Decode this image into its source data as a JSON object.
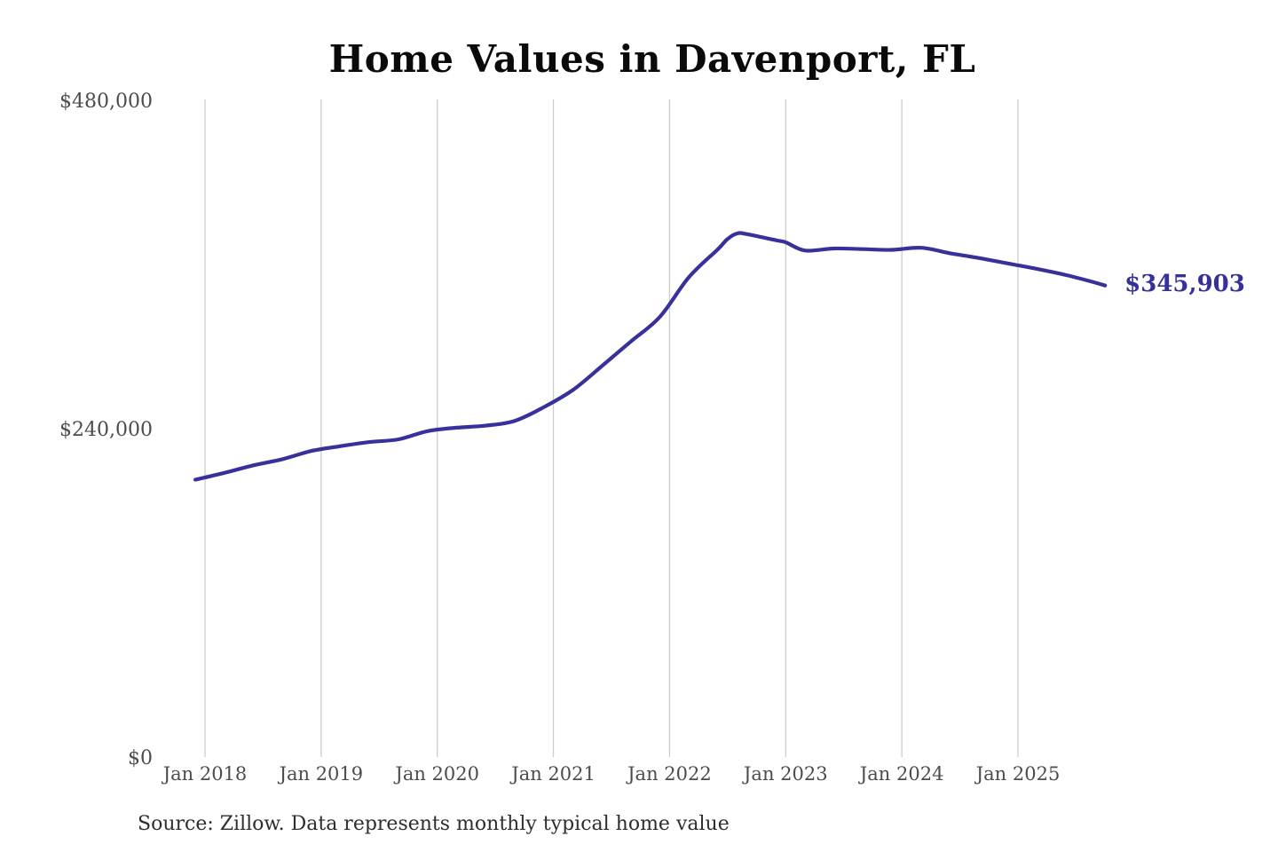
{
  "page": {
    "background": "#ffffff"
  },
  "chart": {
    "title": "Home Values in Davenport, FL",
    "annotation": {
      "label": "$345,903"
    },
    "colors": {
      "line": "#39319b",
      "annotation_text": "#36309a",
      "grid": "#cccccc",
      "axis_text": "#4c4c4c",
      "title_text": "#0a0a0a"
    }
  },
  "footer": {
    "source": "Source: Zillow. Data represents monthly typical home value"
  },
  "chart_data": {
    "type": "line",
    "title": "Home Values in Davenport, FL",
    "unit": "USD",
    "legend": "none",
    "grid": "vertical-only",
    "y_axis": {
      "range": [
        0,
        480000
      ],
      "ticks": [
        {
          "label": "$0",
          "value": 0
        },
        {
          "label": "$240,000",
          "value": 240000
        },
        {
          "label": "$480,000",
          "value": 480000
        }
      ]
    },
    "x_axis": {
      "tick_labels": [
        "Jan 2018",
        "Jan 2019",
        "Jan 2020",
        "Jan 2021",
        "Jan 2022",
        "Jan 2023",
        "Jan 2024",
        "Jan 2025"
      ]
    },
    "end_label": "$345,903",
    "series": [
      {
        "name": "Monthly typical home value",
        "points": [
          {
            "month": "Dec 2017",
            "value": 204000
          },
          {
            "month": "Mar 2018",
            "value": 209000
          },
          {
            "month": "Jun 2018",
            "value": 214500
          },
          {
            "month": "Sep 2018",
            "value": 219000
          },
          {
            "month": "Dec 2018",
            "value": 225000
          },
          {
            "month": "Mar 2019",
            "value": 228500
          },
          {
            "month": "Jun 2019",
            "value": 231500
          },
          {
            "month": "Sep 2019",
            "value": 233500
          },
          {
            "month": "Dec 2019",
            "value": 239500
          },
          {
            "month": "Mar 2020",
            "value": 242000
          },
          {
            "month": "Jun 2020",
            "value": 243500
          },
          {
            "month": "Sep 2020",
            "value": 247000
          },
          {
            "month": "Dec 2020",
            "value": 257000
          },
          {
            "month": "Mar 2021",
            "value": 269500
          },
          {
            "month": "Jun 2021",
            "value": 287000
          },
          {
            "month": "Sep 2021",
            "value": 305000
          },
          {
            "month": "Dec 2021",
            "value": 323000
          },
          {
            "month": "Mar 2022",
            "value": 352000
          },
          {
            "month": "Jun 2022",
            "value": 372500
          },
          {
            "month": "Jul 2022",
            "value": 380000
          },
          {
            "month": "Aug 2022",
            "value": 384000
          },
          {
            "month": "Sep 2022",
            "value": 383500
          },
          {
            "month": "Dec 2022",
            "value": 379000
          },
          {
            "month": "Jan 2023",
            "value": 377500
          },
          {
            "month": "Mar 2023",
            "value": 371500
          },
          {
            "month": "Jun 2023",
            "value": 373000
          },
          {
            "month": "Sep 2023",
            "value": 372500
          },
          {
            "month": "Dec 2023",
            "value": 372000
          },
          {
            "month": "Mar 2024",
            "value": 373500
          },
          {
            "month": "Jun 2024",
            "value": 369500
          },
          {
            "month": "Sep 2024",
            "value": 366000
          },
          {
            "month": "Dec 2024",
            "value": 362000
          },
          {
            "month": "Mar 2025",
            "value": 358000
          },
          {
            "month": "Jun 2025",
            "value": 353500
          },
          {
            "month": "Sep 2025",
            "value": 348000
          },
          {
            "month": "Oct 2025",
            "value": 345903
          }
        ]
      }
    ]
  }
}
